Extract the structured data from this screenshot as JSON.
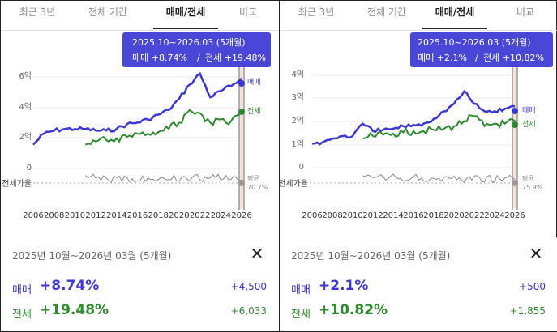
{
  "tabs": [
    "최근 3년",
    "전체 기간",
    "매매/전세",
    "비교"
  ],
  "active_tab": "매매/전세",
  "colors": {
    "buy": "#3b36d6",
    "rent": "#2e8a2e",
    "gap": "#888888",
    "tooltip": "#4a47d8"
  },
  "x_labels": [
    "2006",
    "2008",
    "2010",
    "2012",
    "2014",
    "2016",
    "2018",
    "2020",
    "2022",
    "2024",
    "2026"
  ],
  "ratio_label": "전세가율",
  "avg_label": "평균",
  "panels": [
    {
      "id": "left",
      "tooltip": {
        "period": "2025.10~2026.03 (5개월)",
        "buy": "매매 +8.74%",
        "sep": "/",
        "rent": "전세 +19.48%"
      },
      "y_labels": [
        "6억",
        "4억",
        "2억",
        "0"
      ],
      "series_labels": {
        "buy": "매매",
        "rent": "전세"
      },
      "avg_value": "70.7%",
      "card": {
        "date": "2025년 10월~2026년 03월 (5개월)",
        "buy_label": "매매",
        "buy_pct": "+8.74%",
        "buy_amt": "+4,500",
        "rent_label": "전세",
        "rent_pct": "+19.48%",
        "rent_amt": "+6,033"
      }
    },
    {
      "id": "right",
      "tooltip": {
        "period": "2025.10~2026.03 (5개월)",
        "buy": "매매 +2.1%",
        "sep": "/",
        "rent": "전세 +10.82%"
      },
      "y_labels": [
        "4억",
        "3억",
        "2억",
        "1억",
        "0"
      ],
      "series_labels": {
        "buy": "매매",
        "rent": "전세"
      },
      "avg_value": "75.9%",
      "card": {
        "date": "2025년 10월~2026년 03월 (5개월)",
        "buy_label": "매매",
        "buy_pct": "+2.1%",
        "buy_amt": "+500",
        "rent_label": "전세",
        "rent_pct": "+10.82%",
        "rent_amt": "+1,855"
      }
    }
  ],
  "chart_data": [
    {
      "type": "line",
      "x": [
        2006,
        2007,
        2008,
        2009,
        2010,
        2011,
        2012,
        2013,
        2014,
        2015,
        2016,
        2017,
        2018,
        2019,
        2020,
        2021,
        2022,
        2023,
        2024,
        2025,
        2026
      ],
      "series": [
        {
          "name": "매매",
          "values": [
            1.6,
            2.3,
            2.5,
            2.6,
            2.6,
            2.6,
            2.5,
            2.5,
            2.6,
            2.9,
            3.0,
            3.2,
            3.5,
            3.8,
            4.5,
            5.4,
            6.1,
            4.6,
            5.0,
            5.3,
            5.8
          ]
        },
        {
          "name": "전세",
          "values": [
            null,
            null,
            null,
            null,
            null,
            1.6,
            1.8,
            1.9,
            2.0,
            2.1,
            2.3,
            2.3,
            2.4,
            2.6,
            3.0,
            3.8,
            3.6,
            3.0,
            3.2,
            3.1,
            3.7
          ]
        }
      ],
      "y_ticks": [
        "0",
        "2억",
        "4억",
        "6억"
      ],
      "ylim": [
        0,
        6.5
      ],
      "xlim": [
        2006,
        2026
      ],
      "ratio_avg": "70.7%"
    },
    {
      "type": "line",
      "x": [
        2006,
        2007,
        2008,
        2009,
        2010,
        2011,
        2012,
        2013,
        2014,
        2015,
        2016,
        2017,
        2018,
        2019,
        2020,
        2021,
        2022,
        2023,
        2024,
        2025,
        2026
      ],
      "series": [
        {
          "name": "매매",
          "values": [
            1.0,
            1.05,
            1.2,
            1.3,
            1.3,
            1.8,
            1.5,
            1.55,
            1.6,
            1.7,
            1.75,
            1.8,
            2.0,
            2.3,
            2.6,
            3.1,
            2.6,
            2.3,
            2.3,
            2.4,
            2.5
          ]
        },
        {
          "name": "전세",
          "values": [
            null,
            null,
            null,
            null,
            null,
            1.2,
            1.3,
            1.35,
            1.4,
            1.45,
            1.5,
            1.5,
            1.55,
            1.6,
            1.7,
            1.9,
            2.1,
            1.7,
            1.8,
            1.8,
            1.9
          ]
        }
      ],
      "y_ticks": [
        "0",
        "1억",
        "2억",
        "3억",
        "4억"
      ],
      "ylim": [
        0,
        4.2
      ],
      "xlim": [
        2006,
        2026
      ],
      "ratio_avg": "75.9%"
    }
  ]
}
